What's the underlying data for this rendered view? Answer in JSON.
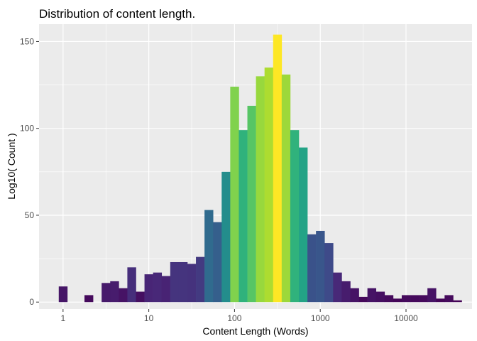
{
  "chart_data": {
    "type": "bar",
    "title": "Distribution of content length.",
    "xlabel": "Content Length (Words)",
    "ylabel": "Log10( Count )",
    "x_scale": "log10",
    "xlim_log10": [
      -0.28,
      4.77
    ],
    "ylim": [
      -4,
      160
    ],
    "x_ticks": [
      {
        "value": 1,
        "label": "1"
      },
      {
        "value": 10,
        "label": "10"
      },
      {
        "value": 100,
        "label": "100"
      },
      {
        "value": 1000,
        "label": "1000"
      },
      {
        "value": 10000,
        "label": "10000"
      }
    ],
    "y_ticks": [
      {
        "value": 0,
        "label": "0"
      },
      {
        "value": 50,
        "label": "50"
      },
      {
        "value": 100,
        "label": "100"
      },
      {
        "value": 150,
        "label": "150"
      }
    ],
    "bins": {
      "log10_start": -0.05,
      "log10_width": 0.1,
      "counts": [
        9,
        0,
        0,
        4,
        0,
        11,
        12,
        8,
        20,
        6,
        16,
        17,
        15,
        23,
        23,
        22,
        26,
        53,
        46,
        75,
        124,
        99,
        113,
        130,
        135,
        154,
        131,
        99,
        89,
        39,
        41,
        34,
        17,
        12,
        8,
        3,
        8,
        6,
        4,
        2,
        4,
        4,
        4,
        8,
        2,
        4,
        1
      ]
    },
    "fill_scale": "viridis",
    "colors": {
      "panel_background": "#ebebeb",
      "grid_major": "#ffffff",
      "viridis_stops": [
        "#440154",
        "#482878",
        "#3e4a89",
        "#31688e",
        "#26828e",
        "#1f9e89",
        "#35b779",
        "#6ece58",
        "#b5de2b",
        "#fde725"
      ]
    }
  }
}
